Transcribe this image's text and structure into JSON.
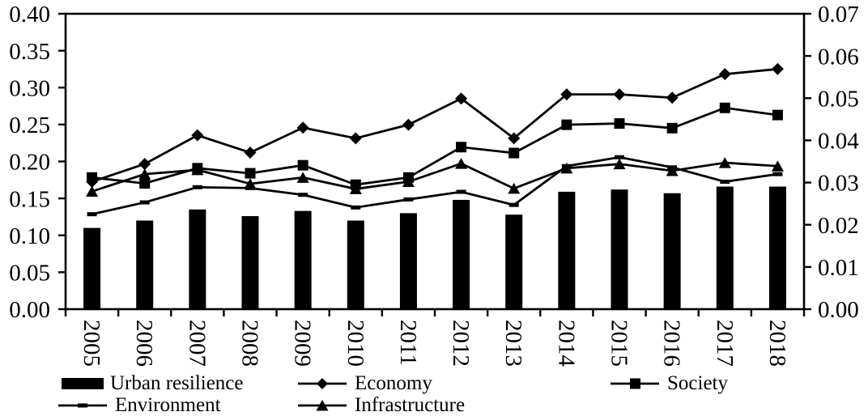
{
  "chart_data": {
    "type": "combo-bar-line",
    "title": "",
    "xlabel": "",
    "ylabel_left": "",
    "ylabel_right": "",
    "grid": false,
    "legend_position": "bottom",
    "categories": [
      "2005",
      "2006",
      "2007",
      "2008",
      "2009",
      "2010",
      "2011",
      "2012",
      "2013",
      "2014",
      "2015",
      "2016",
      "2017",
      "2018"
    ],
    "bar_series": {
      "name": "Urban resilience",
      "axis": "left",
      "values": [
        0.11,
        0.12,
        0.135,
        0.126,
        0.133,
        0.12,
        0.13,
        0.148,
        0.128,
        0.159,
        0.162,
        0.157,
        0.166,
        0.166
      ]
    },
    "line_series": [
      {
        "name": "Economy",
        "marker": "diamond",
        "axis": "right",
        "values": [
          0.0302,
          0.0344,
          0.0412,
          0.0371,
          0.043,
          0.0405,
          0.0437,
          0.0499,
          0.0405,
          0.0509,
          0.0509,
          0.0501,
          0.0557,
          0.0569
        ]
      },
      {
        "name": "Society",
        "marker": "square",
        "axis": "right",
        "values": [
          0.0312,
          0.0298,
          0.0334,
          0.0322,
          0.0341,
          0.0295,
          0.0312,
          0.0384,
          0.037,
          0.0437,
          0.044,
          0.0429,
          0.0477,
          0.046
        ]
      },
      {
        "name": "Environment",
        "marker": "dash",
        "axis": "right",
        "values": [
          0.0225,
          0.0253,
          0.0289,
          0.0287,
          0.0271,
          0.0241,
          0.026,
          0.0278,
          0.0247,
          0.0339,
          0.036,
          0.0336,
          0.0302,
          0.032
        ]
      },
      {
        "name": "Infrastructure",
        "marker": "triangle",
        "axis": "right",
        "values": [
          0.0279,
          0.032,
          0.033,
          0.0297,
          0.0312,
          0.0285,
          0.0302,
          0.0345,
          0.0286,
          0.0334,
          0.0344,
          0.0328,
          0.0347,
          0.0339
        ]
      }
    ],
    "left_axis": {
      "min": 0,
      "max": 0.4,
      "step": 0.05,
      "tick_labels": [
        "0.00",
        "0.05",
        "0.10",
        "0.15",
        "0.20",
        "0.25",
        "0.30",
        "0.35",
        "0.40"
      ]
    },
    "right_axis": {
      "min": 0,
      "max": 0.07,
      "step": 0.01,
      "tick_labels": [
        "0.00",
        "0.01",
        "0.02",
        "0.03",
        "0.04",
        "0.05",
        "0.06",
        "0.07"
      ]
    },
    "colors": {
      "series": "#000000",
      "background": "#ffffff"
    }
  },
  "legend": {
    "items": [
      {
        "label": "Urban resilience",
        "marker": "bar"
      },
      {
        "label": "Economy",
        "marker": "diamond"
      },
      {
        "label": "Society",
        "marker": "square"
      },
      {
        "label": "Environment",
        "marker": "dash"
      },
      {
        "label": "Infrastructure",
        "marker": "triangle"
      }
    ]
  }
}
